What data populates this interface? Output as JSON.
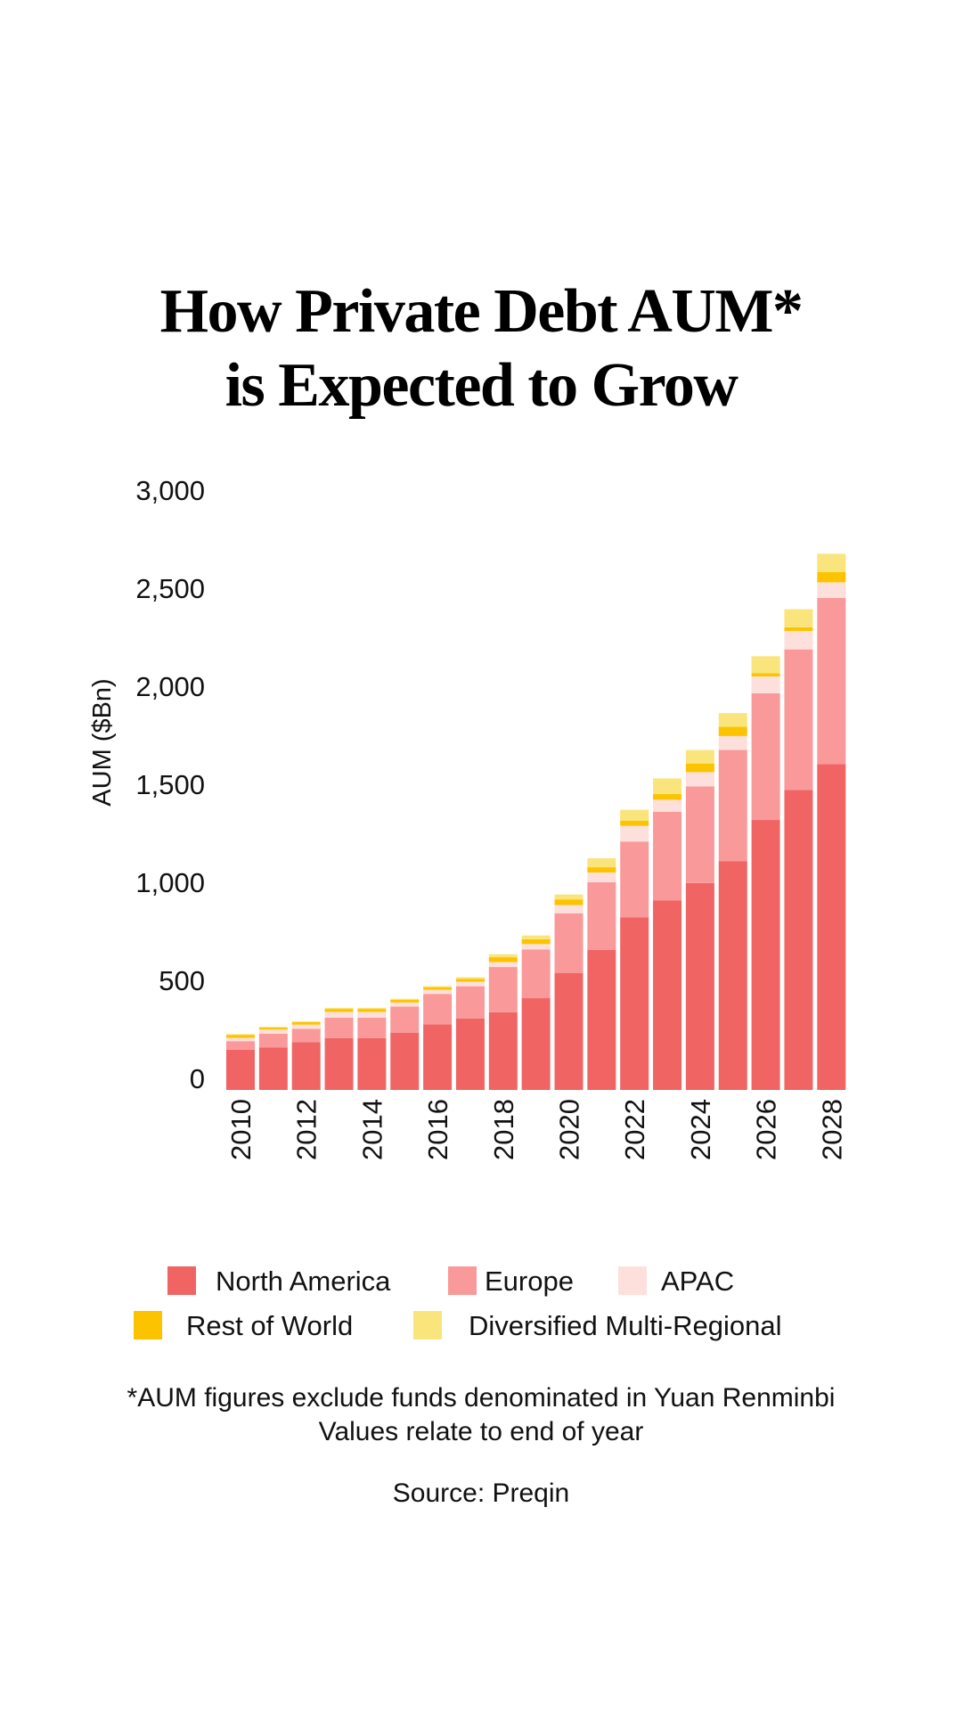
{
  "title": {
    "line1": "How Private Debt AUM*",
    "line2": "is Expected to Grow"
  },
  "chart_data": {
    "type": "bar",
    "stacked": true,
    "ylabel": "AUM ($Bn)",
    "xlabel": "",
    "ylim": [
      0,
      3000
    ],
    "yticks": [
      "0",
      "500",
      "1,000",
      "1,500",
      "2,000",
      "2,500",
      "3,000"
    ],
    "ytick_values": [
      0,
      500,
      1000,
      1500,
      2000,
      2500,
      3000
    ],
    "grid": false,
    "legend_position": "bottom",
    "categories": [
      "2010",
      "2011",
      "2012",
      "2013",
      "2014",
      "2015",
      "2016",
      "2017",
      "2018",
      "2019",
      "2020",
      "2021",
      "2022",
      "2023",
      "2024",
      "2025",
      "2026",
      "2027",
      "2028"
    ],
    "xtick_labels": [
      "2010",
      "2012",
      "2014",
      "2016",
      "2018",
      "2020",
      "2022",
      "2024",
      "2026",
      "2028"
    ],
    "series": [
      {
        "name": "North America",
        "color": "#f06464",
        "values": [
          205,
          216,
          243,
          264,
          264,
          291,
          335,
          365,
          396,
          468,
          597,
          715,
          881,
          966,
          1055,
          1166,
          1377,
          1530,
          1662
        ]
      },
      {
        "name": "Europe",
        "color": "#fa999a",
        "values": [
          44,
          71,
          69,
          105,
          105,
          134,
          155,
          164,
          231,
          249,
          304,
          344,
          386,
          453,
          493,
          568,
          646,
          717,
          847
        ]
      },
      {
        "name": "APAC",
        "color": "#fde0db",
        "values": [
          17,
          21,
          21,
          29,
          29,
          21,
          21,
          23,
          25,
          27,
          42,
          50,
          80,
          61,
          73,
          71,
          86,
          94,
          80
        ]
      },
      {
        "name": "Rest of World",
        "color": "#fcc400",
        "values": [
          15,
          10,
          13,
          15,
          15,
          13,
          13,
          15,
          25,
          25,
          29,
          27,
          27,
          29,
          44,
          48,
          17,
          19,
          52
        ]
      },
      {
        "name": "Diversified Multi-Regional",
        "color": "#fae57c",
        "values": [
          4,
          4,
          4,
          6,
          6,
          6,
          6,
          8,
          15,
          19,
          25,
          46,
          55,
          80,
          69,
          69,
          86,
          92,
          94
        ]
      }
    ]
  },
  "footnotes": {
    "line1": "*AUM figures exclude funds denominated in Yuan Renminbi",
    "line2": "Values relate to end of year",
    "source": "Source: Preqin"
  }
}
